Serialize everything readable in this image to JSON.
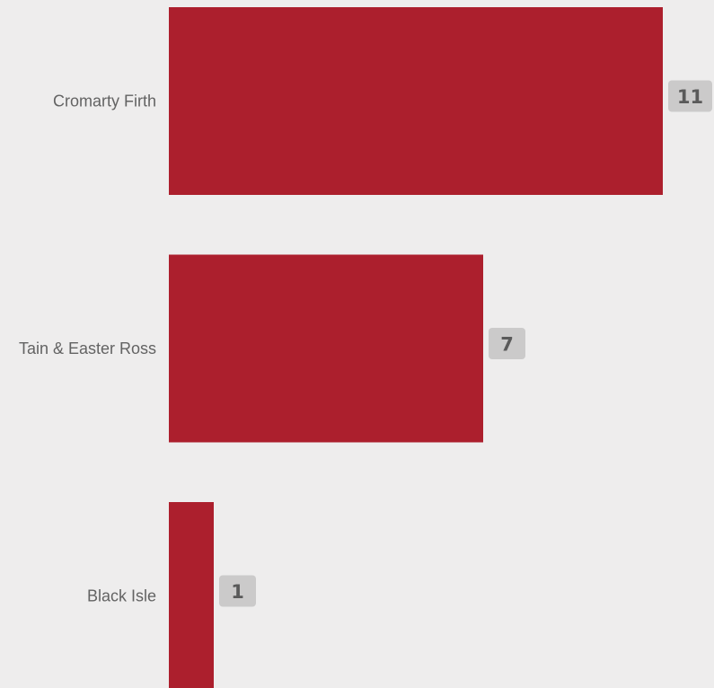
{
  "colors": {
    "background": "#eeeded",
    "bar": "#ac1f2d",
    "label_text": "#636363",
    "value_badge_bg": "#cbcaca",
    "value_text": "#5a5a5a"
  },
  "chart_data": {
    "type": "bar",
    "orientation": "horizontal",
    "categories": [
      "Cromarty Firth",
      "Tain & Easter Ross",
      "Black Isle"
    ],
    "values": [
      11,
      7,
      1
    ],
    "value_labels": [
      "11",
      "7",
      "1"
    ],
    "xlim": [
      0,
      11
    ],
    "grid": false,
    "legend": "none"
  }
}
